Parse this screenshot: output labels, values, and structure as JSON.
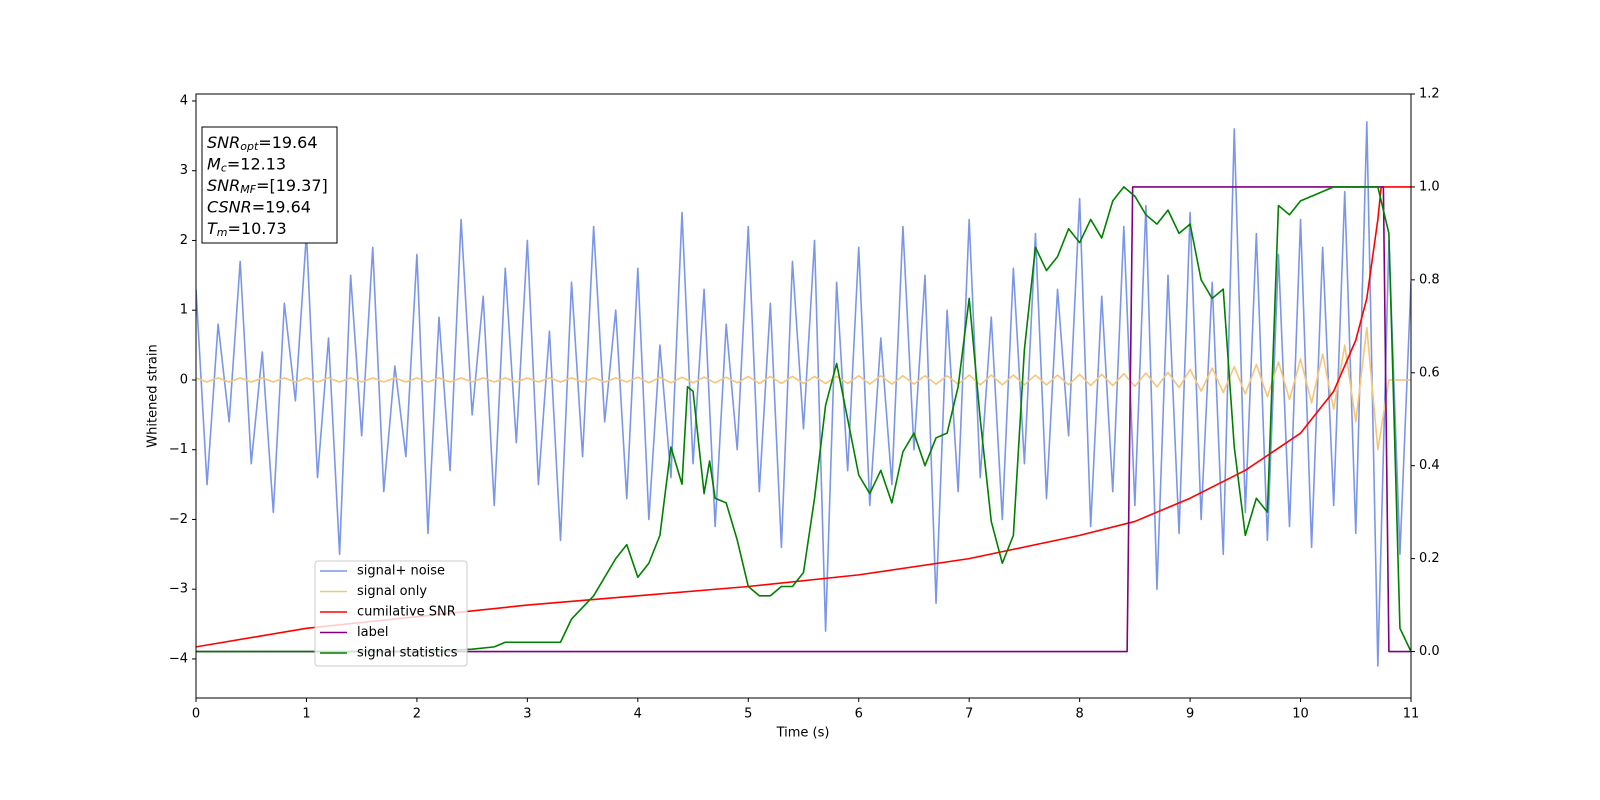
{
  "chart_data": {
    "type": "line",
    "xlabel": "Time (s)",
    "ylabel": "Whitened strain",
    "xlim": [
      0,
      11
    ],
    "xticks": [
      0,
      1,
      2,
      3,
      4,
      5,
      6,
      7,
      8,
      9,
      10,
      11
    ],
    "ylim": [
      -4.56,
      4.1
    ],
    "yticks": [
      {
        "value": -4,
        "label": "−4"
      },
      {
        "value": -3,
        "label": "−3"
      },
      {
        "value": -2,
        "label": "−2"
      },
      {
        "value": -1,
        "label": "−1"
      },
      0,
      1,
      2,
      3,
      4
    ],
    "y2lim": [
      -0.1,
      1.2
    ],
    "y2ticks": [
      {
        "value": 0,
        "label": "0.0"
      },
      0.2,
      0.4,
      0.6,
      0.8,
      {
        "value": 1,
        "label": "1.0"
      },
      1.2
    ],
    "legend": "lower-left",
    "annotations": [
      {
        "base": "SNR",
        "sub": "opt",
        "text": "=19.64"
      },
      {
        "base": "M",
        "sub": "c",
        "text": "=12.13"
      },
      {
        "base": "SNR",
        "sub": "MF",
        "text": "=[19.37]"
      },
      {
        "base": "CSNR",
        "sub": "",
        "text": "=19.64"
      },
      {
        "base": "T",
        "sub": "m",
        "text": "=10.73"
      }
    ],
    "x": [
      0,
      0.1,
      0.2,
      0.3,
      0.4,
      0.5,
      0.6,
      0.7,
      0.8,
      0.9,
      1,
      1.1,
      1.2,
      1.3,
      1.4,
      1.5,
      1.6,
      1.7,
      1.8,
      1.9,
      2,
      2.1,
      2.2,
      2.3,
      2.4,
      2.5,
      2.6,
      2.7,
      2.8,
      2.9,
      3,
      3.1,
      3.2,
      3.3,
      3.4,
      3.5,
      3.6,
      3.7,
      3.8,
      3.9,
      4,
      4.1,
      4.2,
      4.3,
      4.4,
      4.5,
      4.6,
      4.7,
      4.8,
      4.9,
      5,
      5.1,
      5.2,
      5.3,
      5.4,
      5.5,
      5.6,
      5.7,
      5.8,
      5.9,
      6,
      6.1,
      6.2,
      6.3,
      6.4,
      6.5,
      6.6,
      6.7,
      6.8,
      6.9,
      7,
      7.1,
      7.2,
      7.3,
      7.4,
      7.5,
      7.6,
      7.7,
      7.8,
      7.9,
      8,
      8.1,
      8.2,
      8.3,
      8.4,
      8.5,
      8.6,
      8.7,
      8.8,
      8.9,
      9,
      9.1,
      9.2,
      9.3,
      9.4,
      9.5,
      9.6,
      9.7,
      9.8,
      9.9,
      10,
      10.1,
      10.2,
      10.3,
      10.4,
      10.5,
      10.6,
      10.7,
      10.8,
      10.9,
      11
    ],
    "series": [
      {
        "name": "signal+ noise",
        "color": "#7b96e8",
        "axis": "y",
        "values": [
          1.3,
          -1.5,
          0.8,
          -0.6,
          1.7,
          -1.2,
          0.4,
          -1.9,
          1.1,
          -0.3,
          2.1,
          -1.4,
          0.6,
          -2.5,
          1.5,
          -0.8,
          1.9,
          -1.6,
          0.2,
          -1.1,
          1.8,
          -2.2,
          0.9,
          -1.3,
          2.3,
          -0.5,
          1.2,
          -1.8,
          1.6,
          -0.9,
          2.0,
          -1.5,
          0.7,
          -2.3,
          1.4,
          -1.1,
          2.2,
          -0.6,
          1.0,
          -1.7,
          1.6,
          -2.0,
          0.5,
          -1.4,
          2.4,
          -1.2,
          1.3,
          -2.1,
          0.8,
          -1.0,
          2.2,
          -1.6,
          1.1,
          -2.4,
          1.7,
          -0.7,
          2.0,
          -3.6,
          1.4,
          -1.3,
          1.9,
          -1.8,
          0.6,
          -1.5,
          2.2,
          -1.0,
          1.5,
          -3.2,
          1.0,
          -1.6,
          2.3,
          -1.4,
          0.9,
          -2.0,
          1.6,
          -1.2,
          2.1,
          -1.7,
          1.3,
          -0.8,
          2.6,
          -2.1,
          1.2,
          -1.6,
          2.2,
          -1.8,
          2.5,
          -3.0,
          1.5,
          -2.2,
          2.4,
          -2.0,
          1.4,
          -2.5,
          3.6,
          -1.9,
          2.1,
          -2.3,
          1.8,
          -2.1,
          2.3,
          -2.4,
          1.9,
          -1.8,
          2.7,
          -2.2,
          3.7,
          -4.1,
          2.0,
          -2.5,
          1.4
        ]
      },
      {
        "name": "signal only",
        "color": "#f5c67a",
        "axis": "y",
        "values": [
          0.03,
          -0.03,
          0.03,
          -0.03,
          0.03,
          -0.03,
          0.03,
          -0.03,
          0.03,
          -0.03,
          0.03,
          -0.03,
          0.03,
          -0.03,
          0.03,
          -0.03,
          0.03,
          -0.03,
          0.03,
          -0.03,
          0.03,
          -0.03,
          0.03,
          -0.03,
          0.03,
          -0.03,
          0.03,
          -0.03,
          0.03,
          -0.03,
          0.03,
          -0.03,
          0.03,
          -0.03,
          0.03,
          -0.03,
          0.03,
          -0.03,
          0.03,
          -0.03,
          0.04,
          -0.04,
          0.04,
          -0.04,
          0.04,
          -0.04,
          0.04,
          -0.04,
          0.04,
          -0.04,
          0.05,
          -0.05,
          0.05,
          -0.05,
          0.05,
          -0.05,
          0.05,
          -0.05,
          0.05,
          -0.05,
          0.06,
          -0.06,
          0.06,
          -0.06,
          0.06,
          -0.06,
          0.06,
          -0.06,
          0.06,
          -0.06,
          0.07,
          -0.07,
          0.07,
          -0.07,
          0.07,
          -0.07,
          0.07,
          -0.07,
          0.07,
          -0.07,
          0.08,
          -0.08,
          0.08,
          -0.08,
          0.09,
          -0.09,
          0.1,
          -0.1,
          0.11,
          -0.11,
          0.15,
          -0.16,
          0.17,
          -0.18,
          0.19,
          -0.2,
          0.22,
          -0.24,
          0.26,
          -0.28,
          0.3,
          -0.33,
          0.37,
          -0.42,
          0.5,
          -0.6,
          0.75,
          -1.0,
          0,
          0,
          0
        ]
      },
      {
        "name": "cumilative SNR",
        "color": "#ff0000",
        "axis": "y2",
        "x": [
          0,
          1,
          2,
          3,
          4,
          5,
          6,
          7,
          8,
          8.5,
          9,
          9.5,
          10,
          10.3,
          10.5,
          10.6,
          10.7,
          10.73,
          11
        ],
        "values": [
          0.01,
          0.05,
          0.075,
          0.1,
          0.12,
          0.14,
          0.165,
          0.2,
          0.25,
          0.28,
          0.33,
          0.39,
          0.47,
          0.56,
          0.67,
          0.76,
          0.93,
          1.0,
          1.0
        ]
      },
      {
        "name": "label",
        "color": "#800080",
        "axis": "y2",
        "x": [
          0,
          8.43,
          8.48,
          10.75,
          10.8,
          11
        ],
        "values": [
          0,
          0,
          1,
          1,
          0,
          0
        ]
      },
      {
        "name": "signal statistics",
        "color": "#008000",
        "axis": "y2",
        "x": [
          0,
          2,
          2.5,
          2.7,
          2.8,
          3,
          3.3,
          3.4,
          3.6,
          3.8,
          3.9,
          4,
          4.1,
          4.2,
          4.3,
          4.4,
          4.45,
          4.5,
          4.6,
          4.65,
          4.7,
          4.8,
          4.9,
          5,
          5.1,
          5.2,
          5.3,
          5.4,
          5.5,
          5.6,
          5.7,
          5.8,
          5.9,
          6,
          6.1,
          6.2,
          6.3,
          6.4,
          6.5,
          6.6,
          6.7,
          6.8,
          6.9,
          7,
          7.1,
          7.2,
          7.3,
          7.4,
          7.5,
          7.6,
          7.7,
          7.8,
          7.9,
          8,
          8.1,
          8.2,
          8.3,
          8.4,
          8.5,
          8.6,
          8.7,
          8.8,
          8.9,
          9,
          9.1,
          9.2,
          9.3,
          9.4,
          9.5,
          9.6,
          9.7,
          9.8,
          9.9,
          10,
          10.1,
          10.3,
          10.6,
          10.7,
          10.8,
          10.9,
          11
        ],
        "values": [
          0,
          0,
          0.005,
          0.01,
          0.02,
          0.02,
          0.02,
          0.07,
          0.12,
          0.2,
          0.23,
          0.16,
          0.19,
          0.25,
          0.44,
          0.36,
          0.57,
          0.56,
          0.34,
          0.41,
          0.33,
          0.32,
          0.24,
          0.14,
          0.12,
          0.12,
          0.14,
          0.14,
          0.17,
          0.33,
          0.53,
          0.62,
          0.5,
          0.38,
          0.34,
          0.39,
          0.32,
          0.43,
          0.47,
          0.4,
          0.46,
          0.47,
          0.57,
          0.76,
          0.5,
          0.28,
          0.19,
          0.25,
          0.65,
          0.87,
          0.82,
          0.85,
          0.91,
          0.88,
          0.93,
          0.89,
          0.97,
          1.0,
          0.98,
          0.94,
          0.92,
          0.95,
          0.9,
          0.92,
          0.8,
          0.76,
          0.78,
          0.44,
          0.25,
          0.33,
          0.3,
          0.96,
          0.94,
          0.97,
          0.98,
          1.0,
          1.0,
          1.0,
          0.9,
          0.05,
          0.0
        ]
      }
    ]
  }
}
